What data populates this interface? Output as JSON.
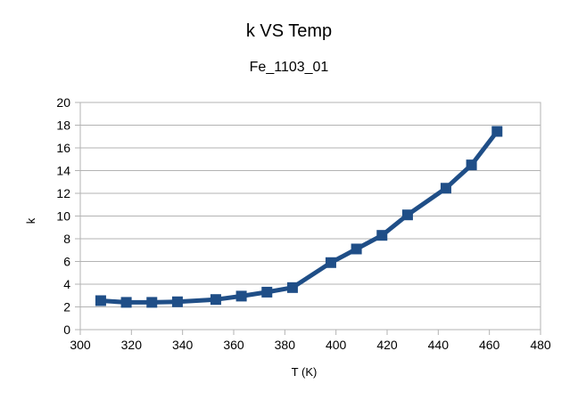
{
  "chart_data": {
    "type": "line",
    "title": "k VS Temp",
    "subtitle": "Fe_1103_01",
    "xlabel": "T (K)",
    "ylabel": "k",
    "xlim": [
      300,
      480
    ],
    "ylim": [
      0,
      20
    ],
    "x_ticks": [
      300,
      320,
      340,
      360,
      380,
      400,
      420,
      440,
      460,
      480
    ],
    "y_ticks": [
      0,
      2,
      4,
      6,
      8,
      10,
      12,
      14,
      16,
      18,
      20
    ],
    "grid": "horizontal",
    "legend": "none",
    "series": [
      {
        "marker": "square",
        "color": "#1f4e87",
        "x": [
          308,
          318,
          328,
          338,
          353,
          363,
          373,
          383,
          398,
          408,
          418,
          428,
          443,
          453,
          463
        ],
        "y": [
          2.55,
          2.4,
          2.4,
          2.45,
          2.65,
          2.95,
          3.3,
          3.7,
          5.9,
          7.1,
          8.3,
          10.1,
          12.45,
          14.5,
          17.45
        ]
      }
    ]
  }
}
